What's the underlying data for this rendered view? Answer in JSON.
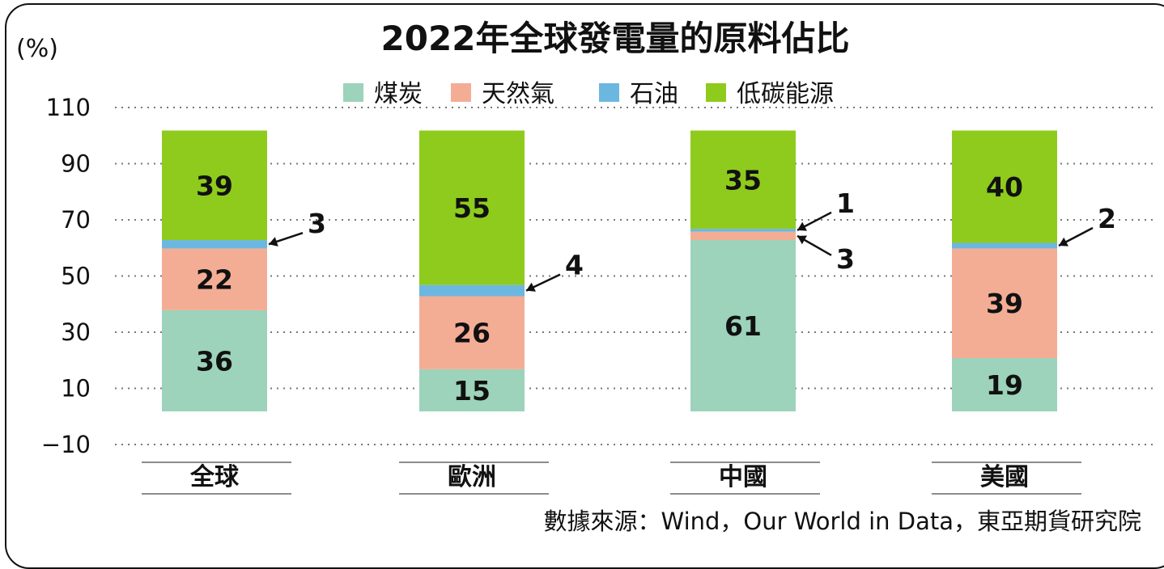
{
  "chart_data": {
    "type": "bar",
    "stacked": true,
    "title": "2022年全球發電量的原料佔比",
    "unit_label": "(%)",
    "categories": [
      "全球",
      "歐洲",
      "中國",
      "美國"
    ],
    "series": [
      {
        "name": "煤炭",
        "color": "#9dd2bb",
        "values": [
          36,
          15,
          61,
          19
        ]
      },
      {
        "name": "天然氣",
        "color": "#f4ad95",
        "values": [
          22,
          26,
          3,
          39
        ]
      },
      {
        "name": "石油",
        "color": "#6cb7e0",
        "values": [
          3,
          4,
          1,
          2
        ]
      },
      {
        "name": "低碳能源",
        "color": "#8ecb1d",
        "values": [
          39,
          55,
          35,
          40
        ]
      }
    ],
    "y_ticks": [
      "110",
      "90",
      "70",
      "50",
      "30",
      "10",
      "−10"
    ],
    "ylim": [
      -10,
      110
    ],
    "grid": true,
    "legend_position": "top-center",
    "source": "數據來源：Wind，Our World in Data，東亞期貨研究院"
  }
}
